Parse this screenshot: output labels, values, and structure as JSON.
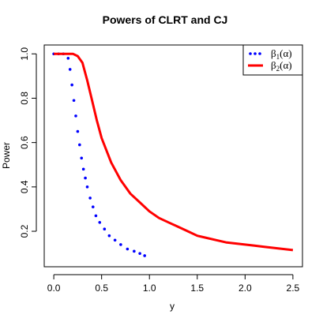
{
  "chart_data": {
    "type": "line",
    "title": "Powers of CLRT and CJ",
    "xlabel": "y",
    "ylabel": "Power",
    "xlim": [
      -0.1,
      2.6
    ],
    "ylim": [
      0.04,
      1.04
    ],
    "grid": false,
    "legend_position": "top-right",
    "xticks": [
      {
        "value": 0,
        "label": "0.0"
      },
      {
        "value": 0.5,
        "label": "0.5"
      },
      {
        "value": 1,
        "label": "1.0"
      },
      {
        "value": 1.5,
        "label": "1.5"
      },
      {
        "value": 2,
        "label": "2.0"
      },
      {
        "value": 2.5,
        "label": "2.5"
      }
    ],
    "yticks": [
      {
        "value": 0.2,
        "label": "0.2"
      },
      {
        "value": 0.4,
        "label": "0.4"
      },
      {
        "value": 0.6,
        "label": "0.6"
      },
      {
        "value": 0.8,
        "label": "0.8"
      },
      {
        "value": 1.0,
        "label": "1.0"
      }
    ],
    "series": [
      {
        "name": "β1(α)",
        "name_main": "β",
        "name_sub": "1",
        "name_arg": "(α)",
        "color": "#0000ff",
        "style": "dotted",
        "x": [
          0.0,
          0.05,
          0.1,
          0.15,
          0.17,
          0.19,
          0.21,
          0.23,
          0.25,
          0.27,
          0.29,
          0.31,
          0.33,
          0.35,
          0.38,
          0.41,
          0.44,
          0.48,
          0.53,
          0.58,
          0.64,
          0.7,
          0.77,
          0.84,
          0.9,
          0.95
        ],
        "y": [
          1.0,
          1.0,
          1.0,
          0.98,
          0.93,
          0.86,
          0.79,
          0.72,
          0.65,
          0.59,
          0.53,
          0.48,
          0.44,
          0.4,
          0.35,
          0.31,
          0.27,
          0.24,
          0.21,
          0.18,
          0.16,
          0.14,
          0.12,
          0.11,
          0.1,
          0.09
        ]
      },
      {
        "name": "β2(α)",
        "name_main": "β",
        "name_sub": "2",
        "name_arg": "(α)",
        "color": "#ff0000",
        "style": "solid",
        "x": [
          0.0,
          0.1,
          0.2,
          0.25,
          0.3,
          0.35,
          0.4,
          0.45,
          0.5,
          0.6,
          0.7,
          0.8,
          0.9,
          1.0,
          1.1,
          1.2,
          1.3,
          1.4,
          1.5,
          1.6,
          1.7,
          1.8,
          1.9,
          2.0,
          2.1,
          2.2,
          2.3,
          2.4,
          2.5
        ],
        "y": [
          1.0,
          1.0,
          1.0,
          0.99,
          0.96,
          0.88,
          0.79,
          0.7,
          0.62,
          0.51,
          0.43,
          0.37,
          0.33,
          0.29,
          0.26,
          0.24,
          0.22,
          0.2,
          0.18,
          0.17,
          0.16,
          0.15,
          0.145,
          0.14,
          0.135,
          0.13,
          0.125,
          0.12,
          0.115
        ]
      }
    ]
  }
}
